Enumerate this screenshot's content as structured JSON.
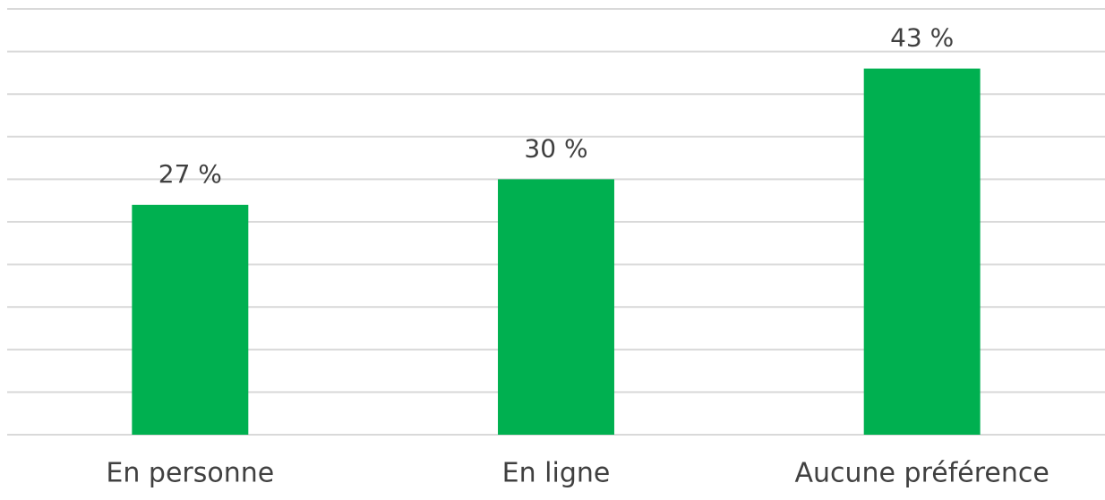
{
  "chart_data": {
    "type": "bar",
    "categories": [
      "En personne",
      "En ligne",
      "Aucune préférence"
    ],
    "values": [
      27,
      30,
      43
    ],
    "value_labels": [
      "27 %",
      "30 %",
      "43 %"
    ],
    "color": "#00b050",
    "ylim": [
      0,
      50
    ],
    "yticks": [
      0,
      5,
      10,
      15,
      20,
      25,
      30,
      35,
      40,
      45,
      50
    ],
    "grid": true
  }
}
